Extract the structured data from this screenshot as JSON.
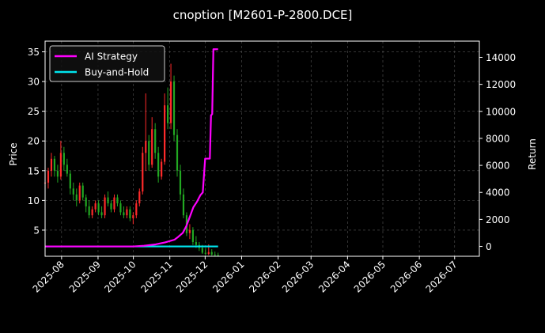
{
  "chart_data": {
    "type": "line",
    "title": "cnoption [M2601-P-2800.DCE]",
    "xlabel": "",
    "ylabel_left": "Price",
    "ylabel_right": "Return",
    "x_range": [
      "2025-07-18",
      "2026-07-22"
    ],
    "y_left_range": [
      0.6,
      36.8
    ],
    "y_right_range": [
      -730,
      15200
    ],
    "x_ticks": [
      "2025-08",
      "2025-09",
      "2025-10",
      "2025-11",
      "2025-12",
      "2026-01",
      "2026-02",
      "2026-03",
      "2026-04",
      "2026-05",
      "2026-06",
      "2026-07"
    ],
    "y_left_ticks": [
      5,
      10,
      15,
      20,
      25,
      30,
      35
    ],
    "y_right_ticks": [
      0,
      2000,
      4000,
      6000,
      8000,
      10000,
      12000,
      14000
    ],
    "grid": true,
    "legend_position": "top-left",
    "colors": {
      "background": "#000000",
      "up": "#ff2a2a",
      "down": "#22a822",
      "ai_strategy": "#ff00ff",
      "buy_hold": "#00e5ee",
      "grid": "#555555"
    },
    "series": [
      {
        "name": "AI Strategy",
        "axis": "right",
        "points": [
          [
            "2025-07-18",
            0
          ],
          [
            "2025-08-15",
            0
          ],
          [
            "2025-09-15",
            0
          ],
          [
            "2025-10-01",
            0
          ],
          [
            "2025-10-10",
            50
          ],
          [
            "2025-10-20",
            150
          ],
          [
            "2025-10-28",
            300
          ],
          [
            "2025-11-05",
            500
          ],
          [
            "2025-11-08",
            700
          ],
          [
            "2025-11-12",
            1000
          ],
          [
            "2025-11-15",
            1500
          ],
          [
            "2025-11-18",
            2200
          ],
          [
            "2025-11-21",
            2900
          ],
          [
            "2025-11-24",
            3300
          ],
          [
            "2025-11-27",
            3800
          ],
          [
            "2025-11-29",
            4000
          ],
          [
            "2025-12-01",
            6500
          ],
          [
            "2025-12-05",
            6500
          ],
          [
            "2025-12-06",
            9700
          ],
          [
            "2025-12-07",
            9800
          ],
          [
            "2025-12-08",
            14600
          ],
          [
            "2025-12-12",
            14600
          ]
        ]
      },
      {
        "name": "Buy-and-Hold",
        "axis": "right",
        "points": [
          [
            "2025-07-18",
            0
          ],
          [
            "2025-12-12",
            0
          ]
        ]
      }
    ],
    "candles": {
      "axis": "left",
      "start": "2025-07-18",
      "end": "2025-12-12",
      "ohlc": [
        [
          13,
          14,
          12,
          13
        ],
        [
          13,
          15.5,
          12,
          15
        ],
        [
          15,
          18,
          14,
          17
        ],
        [
          17,
          17.5,
          14,
          15
        ],
        [
          15,
          16,
          13,
          14
        ],
        [
          14,
          20,
          13.5,
          18
        ],
        [
          18,
          19,
          15,
          16
        ],
        [
          16,
          17,
          14,
          14.5
        ],
        [
          14.5,
          15,
          11,
          12
        ],
        [
          12,
          13,
          10,
          11
        ],
        [
          11,
          12,
          9,
          10
        ],
        [
          10,
          13,
          9.5,
          12.5
        ],
        [
          12.5,
          13,
          10,
          10.5
        ],
        [
          10.5,
          11,
          8,
          9
        ],
        [
          9,
          10,
          7,
          7.5
        ],
        [
          7.5,
          9,
          7,
          8.5
        ],
        [
          8.5,
          10,
          8,
          9.5
        ],
        [
          9.5,
          10,
          7.5,
          8
        ],
        [
          8,
          9,
          7,
          7.5
        ],
        [
          7.5,
          11,
          7,
          10.5
        ],
        [
          10.5,
          11.5,
          9,
          9.5
        ],
        [
          9.5,
          10,
          8,
          8.5
        ],
        [
          8.5,
          11,
          8,
          10.5
        ],
        [
          10.5,
          11,
          9,
          9.5
        ],
        [
          9.5,
          10,
          7.5,
          8
        ],
        [
          8,
          9,
          7,
          7.5
        ],
        [
          7.5,
          9,
          7,
          8.5
        ],
        [
          8.5,
          9,
          6.5,
          7
        ],
        [
          7,
          8,
          6,
          7.5
        ],
        [
          7.5,
          10,
          7,
          9.5
        ],
        [
          9.5,
          12,
          9,
          11.5
        ],
        [
          11.5,
          19,
          11,
          18
        ],
        [
          18,
          28,
          15,
          20
        ],
        [
          20,
          21,
          15,
          16
        ],
        [
          16,
          24,
          15.5,
          22
        ],
        [
          22,
          23,
          17,
          18
        ],
        [
          18,
          19,
          13,
          14
        ],
        [
          14,
          17,
          13.5,
          16.5
        ],
        [
          16.5,
          28,
          16,
          26
        ],
        [
          26,
          29,
          22,
          23
        ],
        [
          23,
          33,
          22,
          30
        ],
        [
          30,
          31,
          20,
          21
        ],
        [
          21,
          22,
          14,
          15
        ],
        [
          15,
          16,
          10,
          11
        ],
        [
          11,
          12,
          7,
          7.5
        ],
        [
          7.5,
          8,
          4,
          4.5
        ],
        [
          4.5,
          6,
          3.5,
          5
        ],
        [
          5,
          5.5,
          2.5,
          3
        ],
        [
          3,
          4,
          2,
          2.5
        ],
        [
          2.5,
          3,
          1.5,
          2
        ],
        [
          2,
          2.5,
          1,
          1.2
        ],
        [
          1.2,
          2,
          0.8,
          1
        ],
        [
          1,
          2.6,
          0.8,
          1.3
        ],
        [
          1.3,
          1.8,
          0.7,
          0.9
        ],
        [
          0.9,
          1.4,
          0.6,
          0.8
        ],
        [
          0.8,
          1.2,
          0.6,
          0.7
        ]
      ]
    }
  }
}
